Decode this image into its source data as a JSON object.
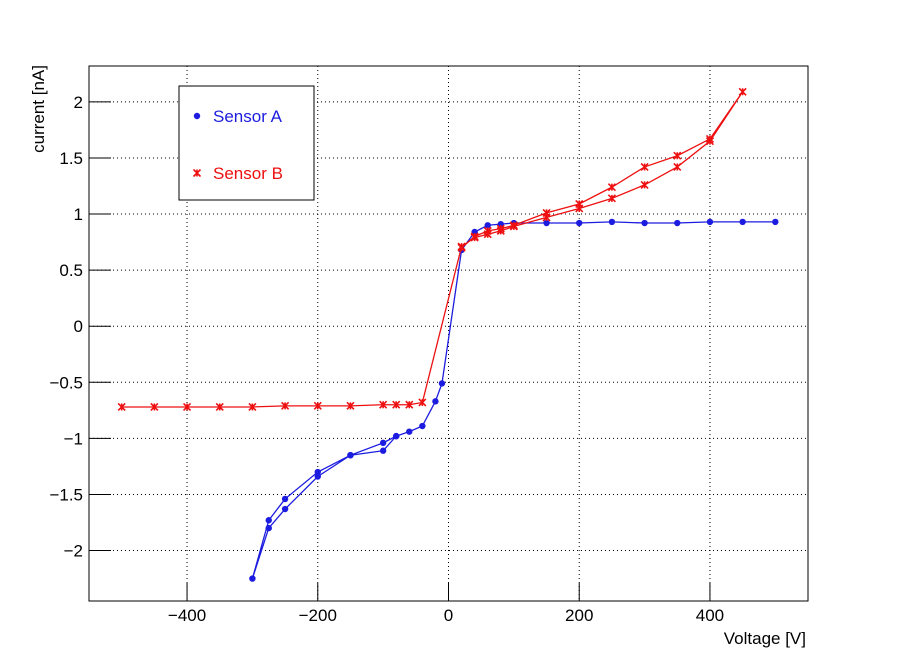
{
  "chart_data": {
    "type": "line",
    "xlabel": "Voltage [V]",
    "ylabel": "current [nA]",
    "xlim": [
      -550,
      550
    ],
    "ylim": [
      -2.45,
      2.32
    ],
    "xticks": [
      {
        "value": -400,
        "label": "−400"
      },
      {
        "value": -200,
        "label": "−200"
      },
      0,
      200,
      400
    ],
    "yticks": [
      {
        "value": -2,
        "label": "−2"
      },
      {
        "value": -1.5,
        "label": "−1.5"
      },
      {
        "value": -1,
        "label": "−1"
      },
      {
        "value": -0.5,
        "label": "−0.5"
      },
      0,
      0.5,
      1,
      1.5,
      2
    ],
    "grid": true,
    "legend": "top-left",
    "series": [
      {
        "name": "Sensor A",
        "color": "#1c1ce0",
        "marker": "circle",
        "x": [
          500,
          450,
          400,
          350,
          300,
          250,
          200,
          150,
          100,
          80,
          60,
          40,
          20,
          -10,
          -20,
          -40,
          -60,
          -80,
          -100,
          -150,
          -200,
          -250,
          -275,
          -300,
          -275,
          -250,
          -200,
          -150,
          -100,
          -80
        ],
        "values": [
          0.93,
          0.93,
          0.93,
          0.92,
          0.92,
          0.93,
          0.92,
          0.92,
          0.92,
          0.91,
          0.9,
          0.84,
          0.68,
          -0.51,
          -0.67,
          -0.89,
          -0.94,
          -0.98,
          -1.04,
          -1.15,
          -1.3,
          -1.54,
          -1.73,
          -2.25,
          -1.8,
          -1.63,
          -1.34,
          -1.15,
          -1.11,
          -0.98
        ]
      },
      {
        "name": "Sensor B",
        "color": "#ee1010",
        "marker": "star",
        "x": [
          -500,
          -450,
          -400,
          -350,
          -300,
          -250,
          -200,
          -150,
          -100,
          -80,
          -60,
          -40,
          20,
          40,
          60,
          80,
          100,
          150,
          200,
          250,
          300,
          350,
          400,
          450,
          400,
          350,
          300,
          250,
          200,
          150,
          100,
          80,
          60,
          40,
          20
        ],
        "values": [
          -0.72,
          -0.72,
          -0.72,
          -0.72,
          -0.72,
          -0.71,
          -0.71,
          -0.71,
          -0.7,
          -0.7,
          -0.7,
          -0.68,
          0.71,
          0.79,
          0.82,
          0.85,
          0.89,
          0.97,
          1.05,
          1.14,
          1.26,
          1.42,
          1.65,
          2.09,
          1.67,
          1.52,
          1.42,
          1.24,
          1.09,
          1.01,
          0.9,
          0.87,
          0.85,
          0.8,
          0.7
        ]
      }
    ]
  }
}
